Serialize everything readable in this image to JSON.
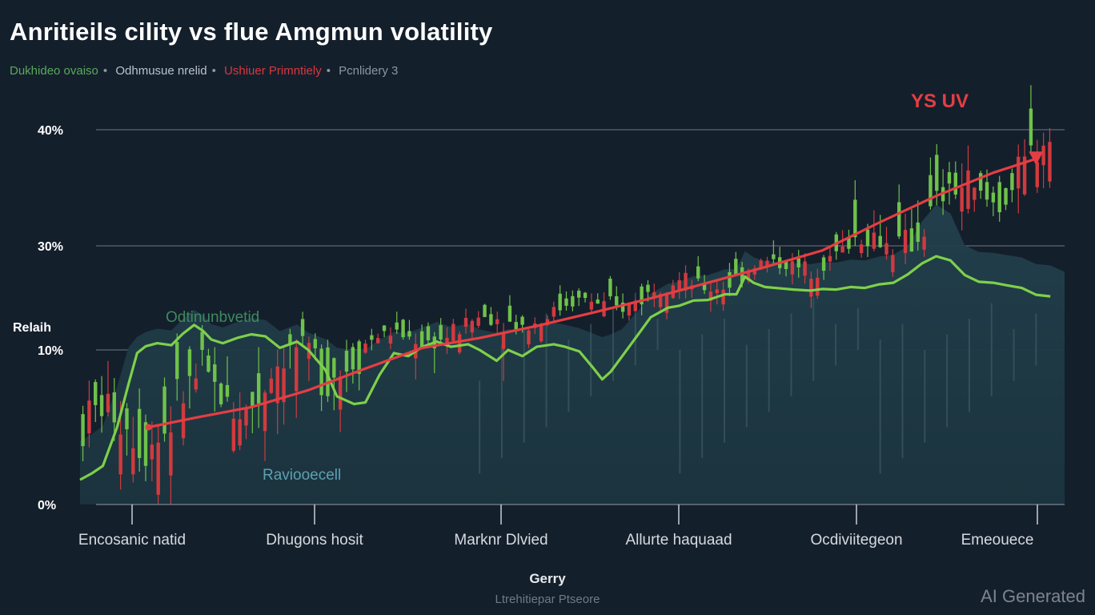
{
  "title": "Anritieils cility vs flue Amgmun volatility",
  "legend": [
    {
      "label": "Dukhideo ovaiso",
      "color": "#5aa85c"
    },
    {
      "label": "Odhmusue nrelid",
      "color": "#b8c2cc"
    },
    {
      "label": "Ushiuer Primntiely",
      "color": "#d8383f"
    },
    {
      "label": "Pcnlidery 3",
      "color": "#8a97a4"
    }
  ],
  "watermark": "AI Generated",
  "colors": {
    "background": "#141f2c",
    "green": "#7ed04a",
    "red": "#e53e42",
    "area": "#1f3d48",
    "grid": "#5c6670"
  },
  "chart_data": {
    "type": "line",
    "title": "Anritieils cility vs flue Amgmun volatility",
    "xlabel": "Gerry",
    "xlabel_sub": "Ltrehitiepar Ptseore",
    "ylabel": "Relaih",
    "y_ticks": [
      "0%",
      "10%",
      "30%",
      "40%"
    ],
    "x_ticks": [
      "Encosanic natid",
      "Dhugons hosit",
      "Marknr Dlvied",
      "Allurte haquaad",
      "Ocdiviitegeon",
      "Emeouece"
    ],
    "annotations": [
      {
        "text": "Odtinunbvetid",
        "color": "#3d8a5e"
      },
      {
        "text": "Raviooecell",
        "color": "#5ea0b0"
      },
      {
        "text": "YS UV",
        "color": "#e53e42"
      }
    ],
    "grid": true,
    "series": [
      {
        "color": "#7ed04a",
        "x": [
          0,
          0.4,
          0.8,
          1.3,
          1.7,
          2.0,
          2.3,
          2.7,
          3.2,
          3.6,
          4.0,
          4.3,
          4.6,
          5.0,
          5.5,
          6.0,
          6.5,
          7.0,
          7.6,
          8.0,
          8.6,
          9.0,
          9.6,
          10.0,
          10.5,
          11.0,
          11.5,
          12.0,
          12.5,
          13.0,
          13.6,
          14.0,
          14.6,
          15.0,
          15.5,
          16.0,
          16.6,
          17.0,
          17.5,
          18.0,
          18.3,
          18.6,
          19.0,
          19.6,
          20.0,
          20.6,
          21.0,
          21.5,
          22.0,
          22.6,
          23.0,
          23.3,
          23.6,
          24.0,
          24.6,
          25.0,
          25.6,
          26.0,
          26.5,
          27.0,
          27.5,
          28.0,
          28.5,
          29.0,
          29.5,
          30.0,
          30.5,
          31.0,
          31.5,
          32.0,
          32.5,
          33.0,
          33.5,
          34.0
        ],
        "y": [
          1.6,
          2.0,
          2.5,
          5.0,
          7.8,
          9.8,
          10.7,
          11.3,
          10.9,
          13.1,
          14.8,
          13.7,
          12.0,
          11.3,
          12.3,
          13.0,
          12.6,
          10.4,
          11.6,
          10.0,
          8.7,
          7.0,
          6.5,
          6.6,
          8.4,
          9.8,
          9.6,
          10.6,
          11.6,
          10.6,
          11.1,
          10.0,
          9.3,
          10.0,
          9.6,
          10.6,
          11.1,
          10.6,
          9.9,
          8.8,
          8.1,
          8.6,
          9.6,
          13.3,
          16.3,
          18.1,
          18.5,
          19.5,
          19.6,
          20.7,
          20.7,
          24.1,
          22.9,
          22.1,
          21.8,
          21.6,
          21.4,
          21.7,
          21.6,
          22.1,
          21.9,
          22.6,
          22.9,
          24.5,
          26.6,
          28.0,
          27.2,
          24.4,
          23.1,
          22.9,
          22.4,
          21.9,
          20.6,
          20.3
        ]
      },
      {
        "color": "#e53e42",
        "x": [
          2.4,
          4.0,
          6.0,
          8.0,
          10.0,
          12.0,
          14.0,
          16.0,
          18.0,
          20.0,
          22.0,
          24.0,
          26.0,
          28.0,
          30.0,
          32.0,
          33.5
        ],
        "y": [
          5.0,
          5.6,
          6.3,
          7.4,
          8.8,
          10.4,
          12.3,
          14.6,
          17.2,
          19.9,
          22.9,
          25.9,
          29.1,
          32.0,
          34.3,
          36.3,
          37.5
        ]
      }
    ]
  }
}
